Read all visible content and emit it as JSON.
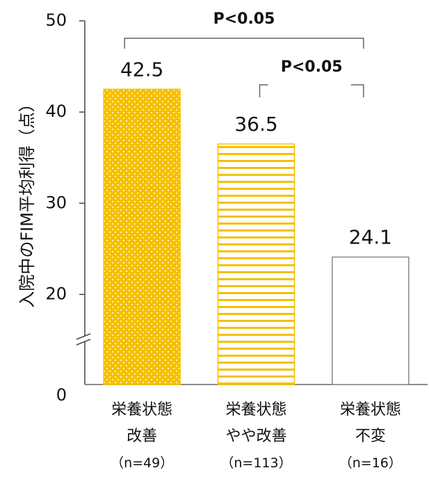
{
  "chart_data": {
    "type": "bar",
    "y_label": "入院中のFIM平均利得（点）",
    "categories": [
      "栄養状態\n改善\n（n=49）",
      "栄養状態\nやや改善\n（n=113）",
      "栄養状態\n不変\n（n=16）"
    ],
    "values": [
      42.5,
      36.5,
      24.1
    ],
    "colors": [
      "#f5c000",
      "#f5c000",
      "#888888"
    ],
    "patterns": [
      "dots",
      "stripes",
      "none"
    ],
    "ylim": [
      0,
      50
    ],
    "yticks": [
      0,
      20,
      30,
      40,
      50
    ],
    "axis_break": 15,
    "annotations": [
      {
        "text": "P<0.05",
        "from": 0,
        "to": 2
      },
      {
        "text": "P<0.05",
        "from": 1,
        "to": 2
      }
    ]
  }
}
